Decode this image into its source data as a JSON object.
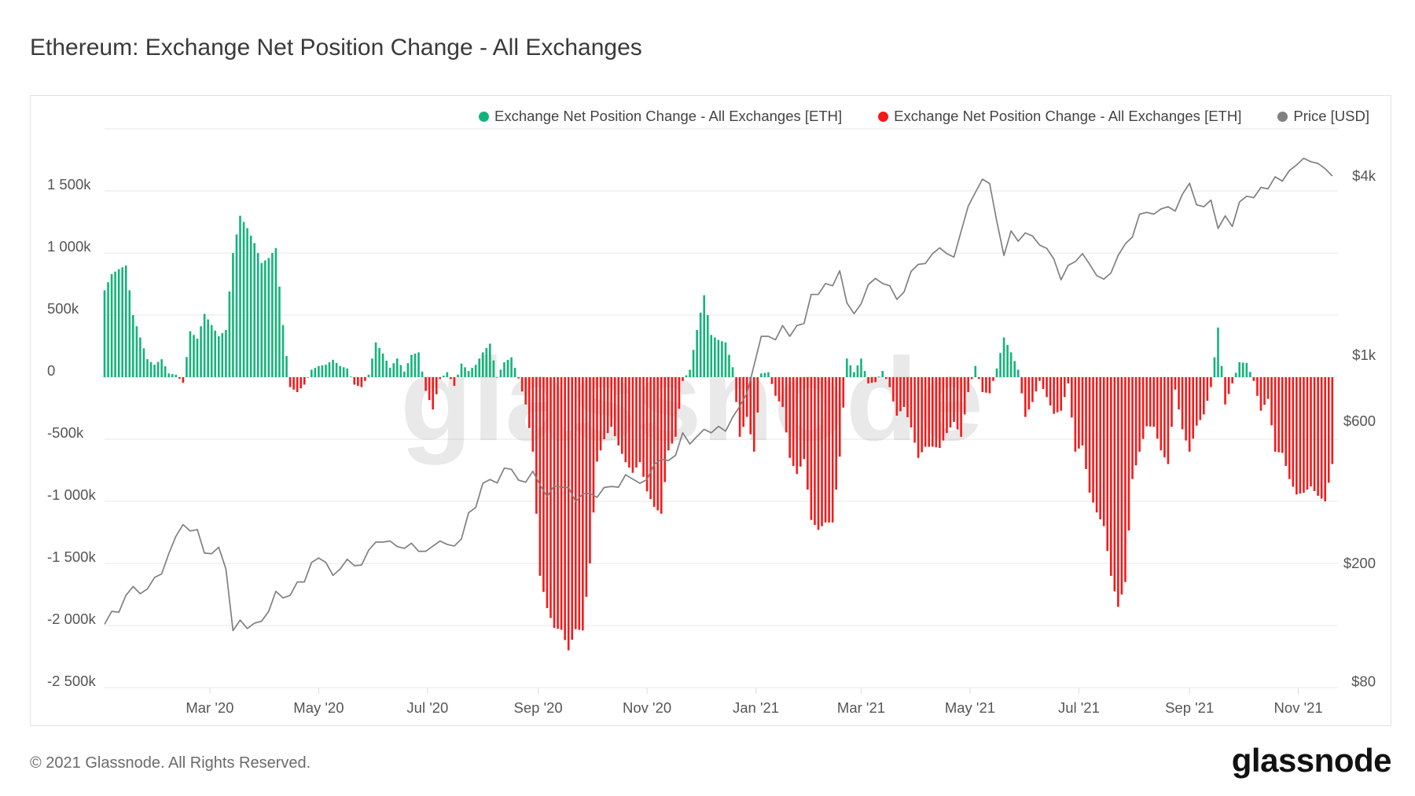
{
  "page": {
    "title": "Ethereum: Exchange Net Position Change - All Exchanges",
    "footer": "© 2021 Glassnode. All Rights Reserved.",
    "logo": "glassnode",
    "watermark": "glassnode"
  },
  "legend": [
    {
      "label": "Exchange Net Position Change - All Exchanges [ETH]",
      "color": "#13b47a"
    },
    {
      "label": "Exchange Net Position Change - All Exchanges [ETH]",
      "color": "#f41a1a"
    },
    {
      "label": "Price [USD]",
      "color": "#808080"
    }
  ],
  "chart_data": {
    "type": "bar+line",
    "title": "Ethereum: Exchange Net Position Change - All Exchanges",
    "start_date": "2020-01-02",
    "interval_days": 4,
    "grid": true,
    "legend_position": "top-right",
    "net_position_change": {
      "name": "Exchange Net Position Change - All Exchanges [ETH]",
      "unit": "thousand ETH",
      "positive_color": "#13b47a",
      "negative_color": "#f41a1a",
      "values": [
        700,
        830,
        870,
        900,
        500,
        320,
        145,
        100,
        145,
        30,
        20,
        -45,
        370,
        310,
        510,
        420,
        330,
        380,
        1000,
        1300,
        1200,
        1080,
        920,
        960,
        1040,
        420,
        -80,
        -120,
        -60,
        60,
        90,
        100,
        140,
        90,
        70,
        -60,
        -80,
        20,
        280,
        190,
        75,
        150,
        45,
        180,
        200,
        -110,
        -260,
        -15,
        40,
        -70,
        110,
        50,
        100,
        200,
        270,
        0,
        120,
        160,
        -10,
        -220,
        -600,
        -1600,
        -1860,
        -2020,
        -2035,
        -2200,
        -2030,
        -2040,
        -1500,
        -680,
        -500,
        -400,
        -550,
        -685,
        -770,
        -685,
        -920,
        -1045,
        -1100,
        -590,
        -480,
        -30,
        60,
        380,
        660,
        340,
        300,
        280,
        80,
        -480,
        -320,
        -600,
        30,
        40,
        -150,
        -240,
        -650,
        -780,
        -660,
        -1150,
        -1230,
        -1170,
        -1170,
        -640,
        150,
        40,
        150,
        -50,
        -40,
        50,
        -80,
        -310,
        -240,
        -405,
        -650,
        -560,
        -560,
        -570,
        -450,
        -360,
        -480,
        -120,
        90,
        -120,
        -130,
        70,
        320,
        200,
        60,
        -320,
        -200,
        -30,
        -160,
        -295,
        -270,
        -50,
        -600,
        -550,
        -930,
        -1090,
        -1200,
        -1600,
        -1850,
        -1650,
        -820,
        -600,
        -395,
        -400,
        -590,
        -700,
        -100,
        -420,
        -600,
        -390,
        -300,
        -80,
        400,
        -220,
        -50,
        120,
        115,
        -30,
        -270,
        -175,
        -600,
        -610,
        -820,
        -945,
        -930,
        -880,
        -955,
        -1000,
        -700
      ]
    },
    "price": {
      "name": "Price [USD]",
      "color": "#808080",
      "scale": "log",
      "values": [
        124,
        137,
        136,
        155,
        166,
        157,
        163,
        178,
        183,
        214,
        245,
        268,
        255,
        258,
        215,
        214,
        225,
        190,
        118,
        128,
        120,
        125,
        127,
        137,
        160,
        152,
        155,
        172,
        172,
        200,
        207,
        200,
        181,
        190,
        205,
        195,
        196,
        220,
        234,
        234,
        236,
        226,
        223,
        232,
        218,
        218,
        227,
        236,
        230,
        227,
        240,
        294,
        306,
        369,
        380,
        370,
        415,
        411,
        378,
        372,
        405,
        365,
        333,
        362,
        358,
        357,
        320,
        340,
        341,
        331,
        357,
        360,
        358,
        394,
        381,
        369,
        380,
        427,
        444,
        440,
        458,
        545,
        500,
        530,
        560,
        545,
        573,
        552,
        615,
        670,
        740,
        920,
        1150,
        1150,
        1120,
        1250,
        1150,
        1250,
        1270,
        1590,
        1590,
        1730,
        1700,
        1910,
        1490,
        1370,
        1480,
        1716,
        1800,
        1730,
        1700,
        1530,
        1620,
        1900,
        2006,
        2020,
        2180,
        2280,
        2180,
        2121,
        2590,
        3150,
        3500,
        3880,
        3750,
        2800,
        2150,
        2600,
        2400,
        2560,
        2500,
        2330,
        2270,
        2092,
        1780,
        1990,
        2050,
        2180,
        2010,
        1840,
        1789,
        1880,
        2150,
        2350,
        2480,
        2960,
        3000,
        2960,
        3080,
        3134,
        3030,
        3450,
        3759,
        3180,
        3134,
        3300,
        2650,
        2920,
        2690,
        3250,
        3400,
        3360,
        3640,
        3600,
        3950,
        3820,
        4150,
        4330,
        4560,
        4440,
        4380,
        4205,
        3974
      ]
    },
    "y_left": {
      "range": [
        -2500,
        2000
      ],
      "ticks": [
        {
          "value": 1500,
          "label": "1 500k"
        },
        {
          "value": 1000,
          "label": "1 000k"
        },
        {
          "value": 500,
          "label": "500k"
        },
        {
          "value": 0,
          "label": "0"
        },
        {
          "value": -500,
          "label": "-500k"
        },
        {
          "value": -1000,
          "label": "-1 000k"
        },
        {
          "value": -1500,
          "label": "-1 500k"
        },
        {
          "value": -2000,
          "label": "-2 000k"
        },
        {
          "value": -2500,
          "label": "-2 500k"
        }
      ]
    },
    "y_right": {
      "ticks": [
        {
          "value": 4000,
          "label": "$4k"
        },
        {
          "value": 1000,
          "label": "$1k"
        },
        {
          "value": 600,
          "label": "$600"
        },
        {
          "value": 200,
          "label": "$200"
        },
        {
          "value": 80,
          "label": "$80"
        }
      ]
    },
    "x_ticks": [
      {
        "date": "2020-03-01",
        "label": "Mar '20"
      },
      {
        "date": "2020-05-01",
        "label": "May '20"
      },
      {
        "date": "2020-07-01",
        "label": "Jul '20"
      },
      {
        "date": "2020-09-01",
        "label": "Sep '20"
      },
      {
        "date": "2020-11-01",
        "label": "Nov '20"
      },
      {
        "date": "2021-01-01",
        "label": "Jan '21"
      },
      {
        "date": "2021-03-01",
        "label": "Mar '21"
      },
      {
        "date": "2021-05-01",
        "label": "May '21"
      },
      {
        "date": "2021-07-01",
        "label": "Jul '21"
      },
      {
        "date": "2021-09-01",
        "label": "Sep '21"
      },
      {
        "date": "2021-11-01",
        "label": "Nov '21"
      }
    ]
  }
}
